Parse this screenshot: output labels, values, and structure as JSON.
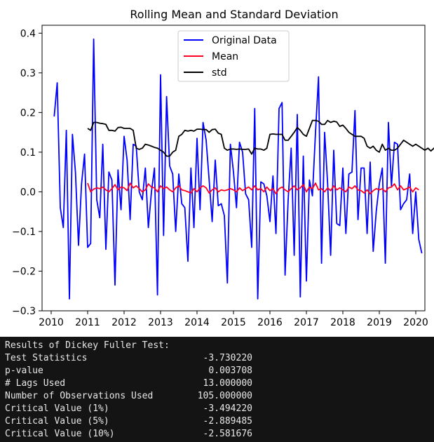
{
  "chart_data": {
    "type": "line",
    "title": "Rolling Mean and Standard Deviation",
    "xlabel": "",
    "ylabel": "",
    "xlim": [
      2009.75,
      2020.25
    ],
    "ylim": [
      -0.3,
      0.42
    ],
    "x_ticks": [
      2010,
      2011,
      2012,
      2013,
      2014,
      2015,
      2016,
      2017,
      2018,
      2019,
      2020
    ],
    "y_ticks": [
      -0.3,
      -0.2,
      -0.1,
      0.0,
      0.1,
      0.2,
      0.3,
      0.4
    ],
    "x_tick_labels": [
      "2010",
      "2011",
      "2012",
      "2013",
      "2014",
      "2015",
      "2016",
      "2017",
      "2018",
      "2019",
      "2020"
    ],
    "y_tick_labels": [
      "−0.3",
      "−0.2",
      "−0.1",
      "0.0",
      "0.1",
      "0.2",
      "0.3",
      "0.4"
    ],
    "legend": {
      "placement": "top-center"
    },
    "grid": false,
    "x_start_year": 2010.083,
    "x_step_years": 0.08333,
    "series": [
      {
        "name": "Original Data",
        "color": "#0000ff",
        "values": [
          0.19,
          0.275,
          -0.04,
          -0.09,
          0.155,
          -0.27,
          0.145,
          0.05,
          -0.135,
          0.02,
          0.095,
          -0.14,
          -0.13,
          0.385,
          -0.02,
          -0.065,
          0.12,
          -0.145,
          0.05,
          0.03,
          -0.235,
          0.055,
          -0.045,
          0.14,
          0.08,
          -0.07,
          0.12,
          0.115,
          0.0,
          -0.02,
          0.06,
          -0.09,
          0.0,
          0.06,
          -0.26,
          0.295,
          -0.11,
          0.24,
          0.065,
          0.045,
          -0.1,
          0.045,
          -0.03,
          -0.04,
          -0.175,
          0.06,
          -0.09,
          0.135,
          -0.045,
          0.175,
          0.13,
          0.03,
          -0.075,
          0.08,
          -0.035,
          -0.03,
          -0.06,
          -0.23,
          0.12,
          0.05,
          -0.04,
          0.125,
          0.1,
          -0.005,
          -0.02,
          -0.14,
          0.21,
          -0.27,
          0.025,
          0.02,
          -0.01,
          -0.075,
          0.04,
          -0.105,
          0.21,
          0.225,
          -0.21,
          -0.02,
          0.11,
          -0.16,
          0.195,
          -0.265,
          0.09,
          -0.225,
          0.03,
          -0.01,
          0.15,
          0.29,
          -0.18,
          0.15,
          0.02,
          -0.16,
          0.105,
          -0.08,
          -0.085,
          0.06,
          -0.105,
          0.045,
          0.05,
          0.205,
          -0.07,
          0.06,
          0.06,
          -0.105,
          0.075,
          -0.15,
          -0.05,
          0.02,
          0.06,
          -0.18,
          0.175,
          0.015,
          0.125,
          0.12,
          -0.045,
          -0.03,
          -0.02,
          0.045,
          -0.105,
          0.0,
          -0.12,
          -0.155
        ]
      },
      {
        "name": "Mean",
        "color": "#ff0022",
        "values": [
          0.022,
          0.0,
          0.007,
          0.01,
          0.008,
          0.012,
          0.005,
          0.0,
          0.008,
          0.018,
          0.005,
          0.012,
          0.01,
          0.003,
          0.022,
          0.01,
          0.015,
          0.008,
          0.0,
          0.005,
          0.02,
          0.012,
          0.01,
          0.0,
          0.015,
          0.008,
          0.012,
          0.005,
          0.0,
          0.01,
          0.015,
          0.005,
          0.003,
          0.0,
          -0.003,
          0.008,
          0.0,
          0.01,
          0.015,
          0.01,
          -0.003,
          0.005,
          0.01,
          0.0,
          0.005,
          0.003,
          0.005,
          0.008,
          0.005,
          0.0,
          0.01,
          0.003,
          0.008,
          0.012,
          0.005,
          0.015,
          0.005,
          0.008,
          0.0,
          0.012,
          0.003,
          0.008,
          -0.005,
          0.008,
          0.012,
          0.005,
          0.0,
          0.008,
          0.015,
          0.005,
          0.01,
          0.018,
          0.0,
          0.012,
          0.008,
          0.022,
          0.005,
          0.008,
          0.0,
          0.01,
          0.003,
          0.015,
          0.005,
          0.01,
          0.005,
          0.0,
          0.012,
          0.008,
          0.015,
          0.005,
          0.003,
          -0.003,
          0.005,
          -0.005,
          0.003,
          0.008,
          0.005,
          0.008,
          0.0,
          0.01,
          0.012,
          0.02,
          0.005,
          0.015,
          0.005,
          0.008,
          0.012,
          0.0,
          0.01,
          0.005
        ]
      },
      {
        "name": "std",
        "color": "#000000",
        "values": [
          0.16,
          0.155,
          0.175,
          0.175,
          0.173,
          0.172,
          0.17,
          0.155,
          0.155,
          0.153,
          0.162,
          0.163,
          0.16,
          0.16,
          0.16,
          0.155,
          0.11,
          0.107,
          0.11,
          0.12,
          0.118,
          0.115,
          0.112,
          0.11,
          0.105,
          0.1,
          0.09,
          0.09,
          0.1,
          0.105,
          0.14,
          0.145,
          0.155,
          0.153,
          0.155,
          0.153,
          0.158,
          0.158,
          0.157,
          0.157,
          0.15,
          0.157,
          0.158,
          0.148,
          0.145,
          0.11,
          0.105,
          0.108,
          0.108,
          0.107,
          0.108,
          0.107,
          0.107,
          0.108,
          0.095,
          0.11,
          0.108,
          0.108,
          0.105,
          0.11,
          0.145,
          0.146,
          0.145,
          0.145,
          0.145,
          0.13,
          0.13,
          0.14,
          0.15,
          0.162,
          0.155,
          0.145,
          0.14,
          0.16,
          0.18,
          0.18,
          0.178,
          0.17,
          0.17,
          0.18,
          0.175,
          0.178,
          0.176,
          0.165,
          0.168,
          0.16,
          0.15,
          0.145,
          0.14,
          0.14,
          0.14,
          0.135,
          0.115,
          0.11,
          0.115,
          0.105,
          0.1,
          0.12,
          0.105,
          0.11,
          0.105,
          0.105,
          0.11,
          0.12,
          0.13,
          0.125,
          0.12,
          0.115,
          0.12,
          0.115,
          0.11,
          0.105,
          0.11,
          0.103,
          0.11,
          0.105
        ]
      }
    ]
  },
  "results": {
    "heading": "Results of Dickey Fuller Test:",
    "rows": [
      {
        "label": "Test Statistics",
        "value": "-3.730220"
      },
      {
        "label": "p-value",
        "value": "0.003708"
      },
      {
        "label": "# Lags Used",
        "value": "13.000000"
      },
      {
        "label": "Number of Observations Used",
        "value": "105.000000"
      },
      {
        "label": "Critical Value (1%)",
        "value": "-3.494220"
      },
      {
        "label": "Critical Value (5%)",
        "value": "-2.889485"
      },
      {
        "label": "Critical Value (10%)",
        "value": "-2.581676"
      }
    ]
  }
}
